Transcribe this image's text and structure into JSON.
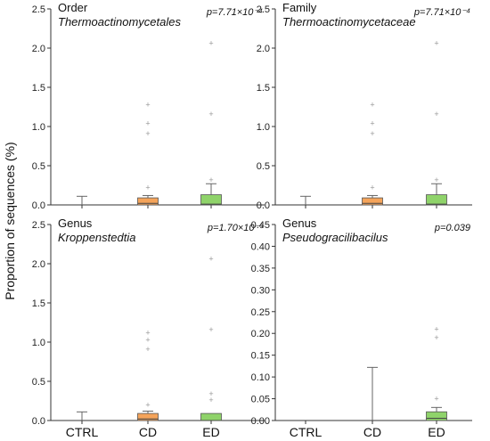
{
  "figure": {
    "ylabel": "Proportion of sequences (%)",
    "categories": [
      "CTRL",
      "CD",
      "ED"
    ],
    "colors": {
      "CTRL": "#9e9e9e",
      "CD": "#f5a45a",
      "ED": "#8fd36a",
      "axis": "#333333",
      "outlier": "#999999"
    }
  },
  "chart_data": [
    {
      "type": "box",
      "rank": "Order",
      "taxon": "Thermoactinomycetales",
      "pvalue": "p=7.71×10⁻⁴",
      "ylim": [
        0,
        2.5
      ],
      "yticks": [
        "0.0",
        "0.5",
        "1.0",
        "1.5",
        "2.0",
        "2.5"
      ],
      "categories": [
        "CTRL",
        "CD",
        "ED"
      ],
      "boxes": [
        {
          "name": "CTRL",
          "q1": 0,
          "median": 0,
          "q3": 0,
          "whisker_low": 0,
          "whisker_high": 0.11,
          "outliers": []
        },
        {
          "name": "CD",
          "q1": 0,
          "median": 0.02,
          "q3": 0.09,
          "whisker_low": 0,
          "whisker_high": 0.12,
          "outliers": [
            0.22,
            0.91,
            1.04,
            1.28
          ]
        },
        {
          "name": "ED",
          "q1": 0,
          "median": 0.01,
          "q3": 0.13,
          "whisker_low": 0,
          "whisker_high": 0.27,
          "outliers": [
            0.32,
            1.16,
            2.06
          ]
        }
      ]
    },
    {
      "type": "box",
      "rank": "Family",
      "taxon": "Thermoactinomycetaceae",
      "pvalue": "p=7.71×10⁻⁴",
      "ylim": [
        0,
        2.5
      ],
      "yticks": [
        "0.0",
        "0.5",
        "1.0",
        "1.5",
        "2.0",
        "2.5"
      ],
      "categories": [
        "CTRL",
        "CD",
        "ED"
      ],
      "boxes": [
        {
          "name": "CTRL",
          "q1": 0,
          "median": 0,
          "q3": 0,
          "whisker_low": 0,
          "whisker_high": 0.11,
          "outliers": []
        },
        {
          "name": "CD",
          "q1": 0,
          "median": 0.02,
          "q3": 0.09,
          "whisker_low": 0,
          "whisker_high": 0.12,
          "outliers": [
            0.22,
            0.91,
            1.04,
            1.28
          ]
        },
        {
          "name": "ED",
          "q1": 0,
          "median": 0.01,
          "q3": 0.13,
          "whisker_low": 0,
          "whisker_high": 0.27,
          "outliers": [
            0.32,
            1.16,
            2.06
          ]
        }
      ]
    },
    {
      "type": "box",
      "rank": "Genus",
      "taxon": "Kroppenstedtia",
      "pvalue": "p=1.70×10⁻³",
      "ylim": [
        0,
        2.5
      ],
      "yticks": [
        "0.0",
        "0.5",
        "1.0",
        "1.5",
        "2.0",
        "2.5"
      ],
      "categories": [
        "CTRL",
        "CD",
        "ED"
      ],
      "boxes": [
        {
          "name": "CTRL",
          "q1": 0,
          "median": 0,
          "q3": 0,
          "whisker_low": 0,
          "whisker_high": 0.11,
          "outliers": []
        },
        {
          "name": "CD",
          "q1": 0,
          "median": 0.02,
          "q3": 0.09,
          "whisker_low": 0,
          "whisker_high": 0.12,
          "outliers": [
            0.2,
            0.91,
            1.03,
            1.12
          ]
        },
        {
          "name": "ED",
          "q1": 0,
          "median": 0,
          "q3": 0.09,
          "whisker_low": 0,
          "whisker_high": 0.09,
          "outliers": [
            0.26,
            0.34,
            1.16,
            2.06
          ]
        }
      ]
    },
    {
      "type": "box",
      "rank": "Genus",
      "taxon": "Pseudogracilibacilus",
      "pvalue": "p=0.039",
      "ylim": [
        0,
        0.45
      ],
      "yticks": [
        "0.00",
        "0.05",
        "0.10",
        "0.15",
        "0.20",
        "0.25",
        "0.30",
        "0.35",
        "0.40",
        "0.45"
      ],
      "categories": [
        "CTRL",
        "CD",
        "ED"
      ],
      "boxes": [
        {
          "name": "CTRL",
          "q1": 0,
          "median": 0,
          "q3": 0,
          "whisker_low": 0,
          "whisker_high": 0,
          "outliers": []
        },
        {
          "name": "CD",
          "q1": 0,
          "median": 0,
          "q3": 0,
          "whisker_low": 0,
          "whisker_high": 0.122,
          "outliers": []
        },
        {
          "name": "ED",
          "q1": 0,
          "median": 0.005,
          "q3": 0.02,
          "whisker_low": 0,
          "whisker_high": 0.03,
          "outliers": [
            0.05,
            0.19,
            0.21
          ]
        }
      ]
    }
  ]
}
